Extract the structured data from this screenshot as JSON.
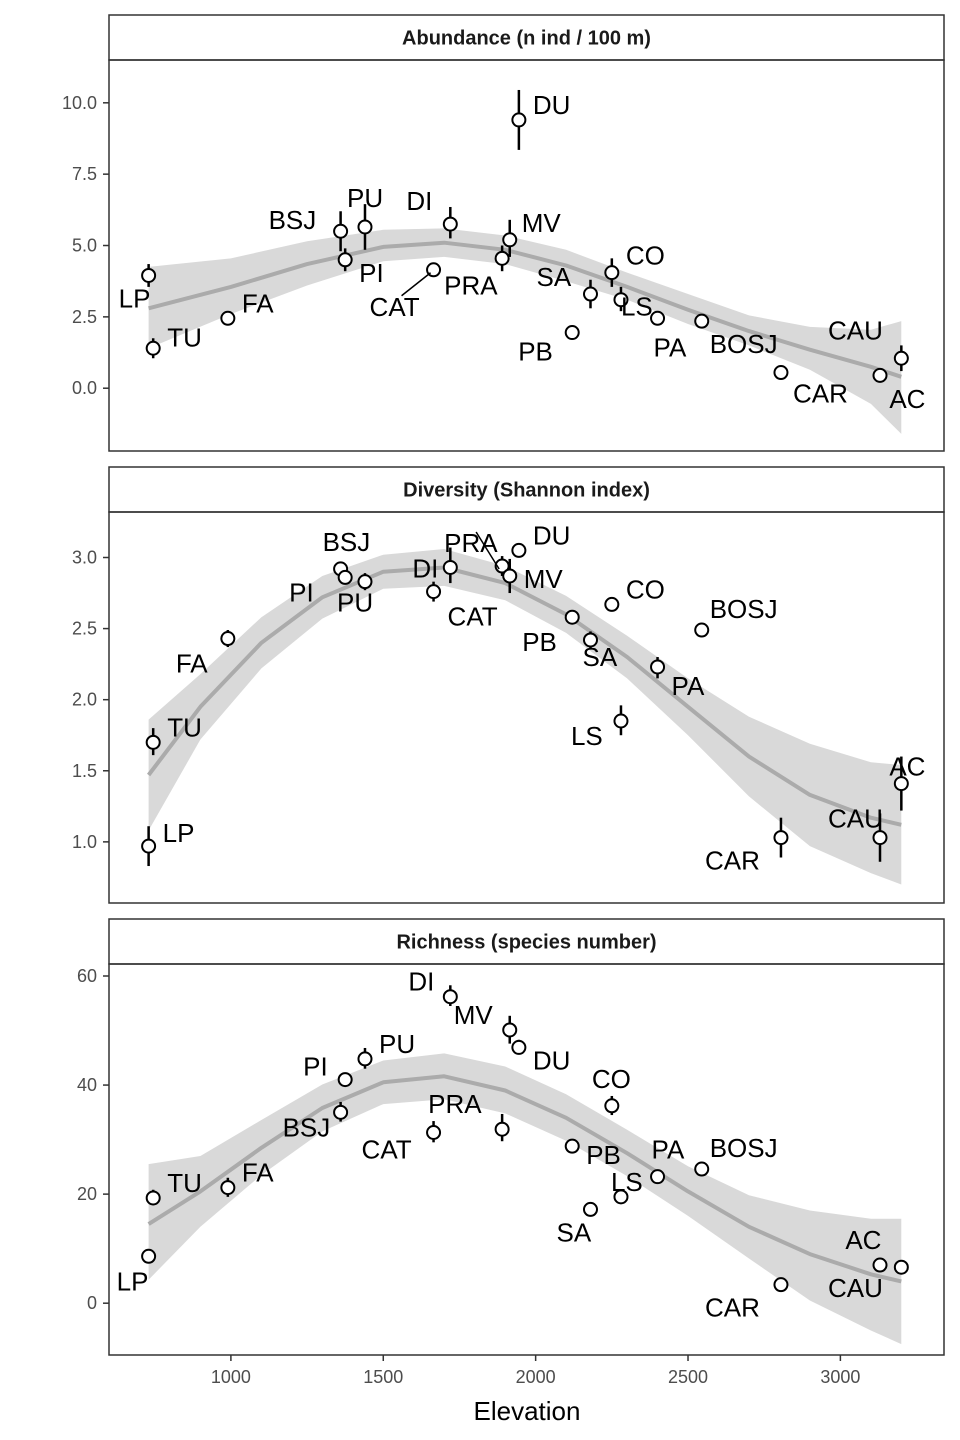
{
  "chart_data": {
    "type": "scatter",
    "xlabel": "Elevation",
    "xlim": [
      600,
      3340
    ],
    "x_ticks": [
      1000,
      1500,
      2000,
      2500,
      3000
    ],
    "colors": {
      "ribbon": "#d9d9d9",
      "line": "#ababab",
      "point_fill": "#ffffff",
      "point_stroke": "#000000",
      "frame": "#333333"
    },
    "panels": [
      {
        "title": "Abundance (n ind / 100 m)",
        "ylim": [
          -2.2,
          11.5
        ],
        "y_ticks": [
          0.0,
          2.5,
          5.0,
          7.5,
          10.0
        ],
        "y_tick_labels": [
          "0.0",
          "2.5",
          "5.0",
          "7.5",
          "10.0"
        ],
        "points": [
          {
            "site": "LP",
            "x": 730,
            "y": 3.95,
            "lo": 3.55,
            "hi": 4.35
          },
          {
            "site": "TU",
            "x": 745,
            "y": 1.4,
            "lo": 1.05,
            "hi": 1.75
          },
          {
            "site": "FA",
            "x": 990,
            "y": 2.45,
            "lo": 2.3,
            "hi": 2.6
          },
          {
            "site": "BSJ",
            "x": 1360,
            "y": 5.5,
            "lo": 4.8,
            "hi": 6.2
          },
          {
            "site": "PI",
            "x": 1375,
            "y": 4.5,
            "lo": 4.1,
            "hi": 4.9
          },
          {
            "site": "PU",
            "x": 1440,
            "y": 5.65,
            "lo": 4.85,
            "hi": 6.45
          },
          {
            "site": "CAT",
            "x": 1665,
            "y": 4.15,
            "lo": 4.0,
            "hi": 4.3
          },
          {
            "site": "DI",
            "x": 1720,
            "y": 5.75,
            "lo": 5.25,
            "hi": 6.35
          },
          {
            "site": "PRA",
            "x": 1890,
            "y": 4.55,
            "lo": 4.1,
            "hi": 5.0
          },
          {
            "site": "MV",
            "x": 1915,
            "y": 5.2,
            "lo": 4.6,
            "hi": 5.9
          },
          {
            "site": "DU",
            "x": 1945,
            "y": 9.4,
            "lo": 8.35,
            "hi": 10.45
          },
          {
            "site": "PB",
            "x": 2120,
            "y": 1.95,
            "lo": 1.85,
            "hi": 2.05
          },
          {
            "site": "SA",
            "x": 2180,
            "y": 3.3,
            "lo": 2.8,
            "hi": 3.8
          },
          {
            "site": "CO",
            "x": 2250,
            "y": 4.05,
            "lo": 3.55,
            "hi": 4.55
          },
          {
            "site": "LS",
            "x": 2280,
            "y": 3.1,
            "lo": 2.7,
            "hi": 3.55
          },
          {
            "site": "PA",
            "x": 2400,
            "y": 2.45,
            "lo": 2.2,
            "hi": 2.7
          },
          {
            "site": "BOSJ",
            "x": 2545,
            "y": 2.35,
            "lo": 2.15,
            "hi": 2.6
          },
          {
            "site": "CAR",
            "x": 2805,
            "y": 0.55,
            "lo": 0.45,
            "hi": 0.65
          },
          {
            "site": "CAU",
            "x": 3130,
            "y": 0.45,
            "lo": 0.35,
            "hi": 0.55
          },
          {
            "site": "AC",
            "x": 3200,
            "y": 1.05,
            "lo": 0.6,
            "hi": 1.5
          }
        ],
        "fit": {
          "x": [
            730,
            1000,
            1250,
            1500,
            1700,
            1900,
            2100,
            2300,
            2500,
            2700,
            2900,
            3100,
            3200
          ],
          "y": [
            2.8,
            3.55,
            4.35,
            4.95,
            5.1,
            4.85,
            4.3,
            3.55,
            2.75,
            2.0,
            1.35,
            0.75,
            0.4
          ],
          "lo": [
            1.4,
            2.6,
            3.6,
            4.45,
            4.6,
            4.35,
            3.75,
            3.1,
            2.25,
            1.5,
            0.65,
            -0.55,
            -1.6
          ],
          "hi": [
            4.25,
            4.55,
            5.15,
            5.55,
            5.6,
            5.35,
            4.85,
            4.05,
            3.3,
            2.55,
            2.15,
            2.05,
            2.35
          ]
        }
      },
      {
        "title": "Diversity (Shannon index)",
        "ylim": [
          0.57,
          3.32
        ],
        "y_ticks": [
          1.0,
          1.5,
          2.0,
          2.5,
          3.0
        ],
        "y_tick_labels": [
          "1.0",
          "1.5",
          "2.0",
          "2.5",
          "3.0"
        ],
        "points": [
          {
            "site": "LP",
            "x": 730,
            "y": 0.97,
            "lo": 0.83,
            "hi": 1.11
          },
          {
            "site": "TU",
            "x": 745,
            "y": 1.7,
            "lo": 1.61,
            "hi": 1.8
          },
          {
            "site": "FA",
            "x": 990,
            "y": 2.43,
            "lo": 2.37,
            "hi": 2.49
          },
          {
            "site": "BSJ",
            "x": 1360,
            "y": 2.92,
            "lo": 2.88,
            "hi": 2.96
          },
          {
            "site": "PI",
            "x": 1375,
            "y": 2.86,
            "lo": 2.82,
            "hi": 2.9
          },
          {
            "site": "PU",
            "x": 1440,
            "y": 2.83,
            "lo": 2.77,
            "hi": 2.89
          },
          {
            "site": "CAT",
            "x": 1665,
            "y": 2.76,
            "lo": 2.69,
            "hi": 2.83
          },
          {
            "site": "DI",
            "x": 1720,
            "y": 2.93,
            "lo": 2.82,
            "hi": 3.07
          },
          {
            "site": "PRA",
            "x": 1890,
            "y": 2.94,
            "lo": 2.87,
            "hi": 3.01
          },
          {
            "site": "MV",
            "x": 1915,
            "y": 2.87,
            "lo": 2.75,
            "hi": 2.99
          },
          {
            "site": "DU",
            "x": 1945,
            "y": 3.05,
            "lo": 3.01,
            "hi": 3.09
          },
          {
            "site": "PB",
            "x": 2120,
            "y": 2.58,
            "lo": 2.53,
            "hi": 2.63
          },
          {
            "site": "SA",
            "x": 2180,
            "y": 2.42,
            "lo": 2.36,
            "hi": 2.48
          },
          {
            "site": "CO",
            "x": 2250,
            "y": 2.67,
            "lo": 2.64,
            "hi": 2.7
          },
          {
            "site": "LS",
            "x": 2280,
            "y": 1.85,
            "lo": 1.75,
            "hi": 1.96
          },
          {
            "site": "PA",
            "x": 2400,
            "y": 2.23,
            "lo": 2.15,
            "hi": 2.3
          },
          {
            "site": "BOSJ",
            "x": 2545,
            "y": 2.49,
            "lo": 2.46,
            "hi": 2.52
          },
          {
            "site": "CAR",
            "x": 2805,
            "y": 1.03,
            "lo": 0.89,
            "hi": 1.17
          },
          {
            "site": "CAU",
            "x": 3130,
            "y": 1.03,
            "lo": 0.86,
            "hi": 1.2
          },
          {
            "site": "AC",
            "x": 3200,
            "y": 1.41,
            "lo": 1.22,
            "hi": 1.6
          }
        ],
        "fit": {
          "x": [
            730,
            900,
            1100,
            1300,
            1500,
            1700,
            1900,
            2100,
            2300,
            2500,
            2700,
            2900,
            3100,
            3200
          ],
          "y": [
            1.47,
            1.95,
            2.4,
            2.72,
            2.9,
            2.93,
            2.82,
            2.6,
            2.3,
            1.95,
            1.6,
            1.33,
            1.17,
            1.12
          ],
          "lo": [
            1.08,
            1.72,
            2.22,
            2.57,
            2.78,
            2.8,
            2.7,
            2.47,
            2.15,
            1.75,
            1.32,
            0.97,
            0.78,
            0.7
          ],
          "hi": [
            1.86,
            2.18,
            2.58,
            2.87,
            3.02,
            3.06,
            2.94,
            2.73,
            2.45,
            2.15,
            1.88,
            1.69,
            1.56,
            1.54
          ]
        }
      },
      {
        "title": "Richness (species number)",
        "ylim": [
          -9.5,
          62.2
        ],
        "y_ticks": [
          0,
          20,
          40,
          60
        ],
        "y_tick_labels": [
          "0",
          "20",
          "40",
          "60"
        ],
        "points": [
          {
            "site": "LP",
            "x": 730,
            "y": 8.6,
            "lo": 7.6,
            "hi": 9.8
          },
          {
            "site": "TU",
            "x": 745,
            "y": 19.3,
            "lo": 18.0,
            "hi": 20.8
          },
          {
            "site": "FA",
            "x": 990,
            "y": 21.2,
            "lo": 19.5,
            "hi": 23.0
          },
          {
            "site": "BSJ",
            "x": 1360,
            "y": 35.0,
            "lo": 33.3,
            "hi": 36.9
          },
          {
            "site": "PI",
            "x": 1375,
            "y": 41.0,
            "lo": 40.0,
            "hi": 42.0
          },
          {
            "site": "PU",
            "x": 1440,
            "y": 44.8,
            "lo": 43.0,
            "hi": 46.8
          },
          {
            "site": "CAT",
            "x": 1665,
            "y": 31.3,
            "lo": 29.5,
            "hi": 33.4
          },
          {
            "site": "DI",
            "x": 1720,
            "y": 56.2,
            "lo": 54.5,
            "hi": 58.3
          },
          {
            "site": "PRA",
            "x": 1890,
            "y": 31.9,
            "lo": 29.7,
            "hi": 34.7
          },
          {
            "site": "MV",
            "x": 1915,
            "y": 50.1,
            "lo": 47.6,
            "hi": 52.7
          },
          {
            "site": "DU",
            "x": 1945,
            "y": 46.9,
            "lo": 45.6,
            "hi": 48.3
          },
          {
            "site": "PB",
            "x": 2120,
            "y": 28.8,
            "lo": 28.0,
            "hi": 29.6
          },
          {
            "site": "SA",
            "x": 2180,
            "y": 17.2,
            "lo": 16.0,
            "hi": 18.5
          },
          {
            "site": "CO",
            "x": 2250,
            "y": 36.2,
            "lo": 34.5,
            "hi": 38.0
          },
          {
            "site": "LS",
            "x": 2280,
            "y": 19.5,
            "lo": 18.8,
            "hi": 20.2
          },
          {
            "site": "PA",
            "x": 2400,
            "y": 23.2,
            "lo": 22.2,
            "hi": 24.2
          },
          {
            "site": "BOSJ",
            "x": 2545,
            "y": 24.6,
            "lo": 24.0,
            "hi": 25.2
          },
          {
            "site": "CAR",
            "x": 2805,
            "y": 3.4,
            "lo": 2.9,
            "hi": 3.9
          },
          {
            "site": "CAU",
            "x": 3130,
            "y": 7.0,
            "lo": 6.4,
            "hi": 7.6
          },
          {
            "site": "AC",
            "x": 3200,
            "y": 6.6,
            "lo": 6.0,
            "hi": 7.2
          }
        ],
        "fit": {
          "x": [
            730,
            900,
            1100,
            1300,
            1500,
            1700,
            1900,
            2100,
            2300,
            2500,
            2700,
            2900,
            3100,
            3200
          ],
          "y": [
            14.5,
            20.5,
            28.5,
            35.8,
            40.5,
            41.6,
            39.0,
            34.0,
            27.5,
            20.5,
            14.0,
            9.0,
            5.3,
            4.0
          ],
          "lo": [
            4.3,
            14.0,
            23.5,
            31.5,
            36.5,
            37.4,
            34.8,
            29.8,
            23.3,
            16.0,
            8.2,
            0.5,
            -5.0,
            -7.5
          ],
          "hi": [
            25.5,
            27.0,
            33.6,
            40.1,
            44.5,
            45.8,
            43.4,
            38.3,
            31.8,
            25.1,
            19.8,
            17.0,
            15.5,
            15.5
          ]
        }
      }
    ]
  }
}
